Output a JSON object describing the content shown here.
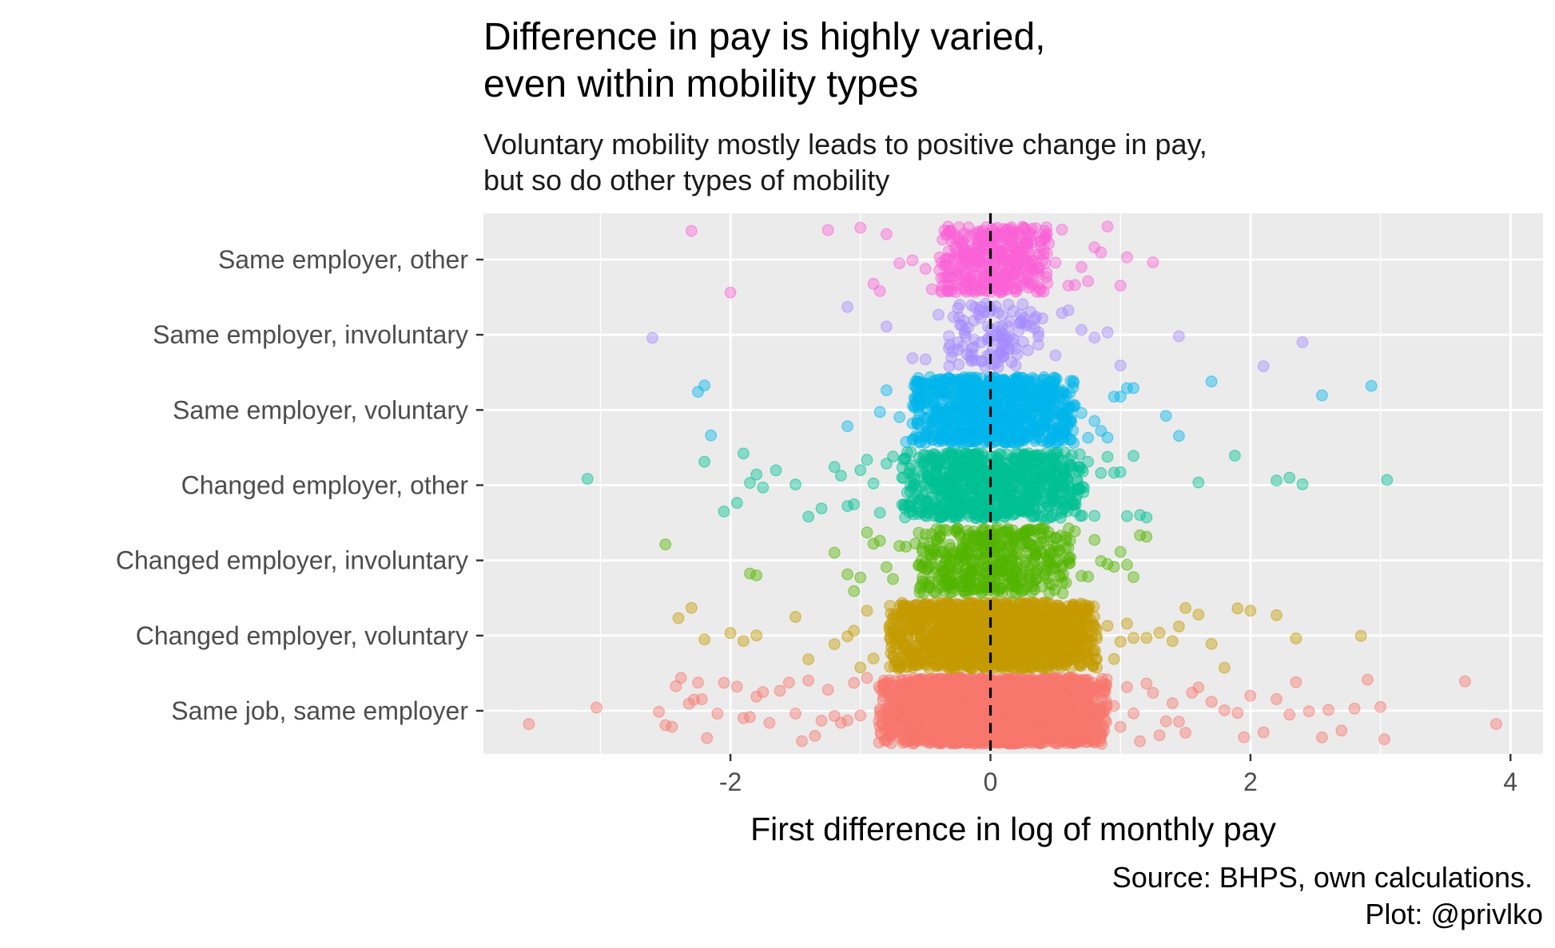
{
  "chart_data": {
    "type": "scatter",
    "title": [
      "Difference in pay is highly varied,",
      "even within mobility types"
    ],
    "subtitle": [
      "Voluntary mobility mostly leads to positive change in pay,",
      "but so do other types of mobility"
    ],
    "xlabel": "First difference in log of monthly pay",
    "ylabel": "",
    "xlim": [
      -3.9,
      4.25
    ],
    "x_ticks": [
      -2,
      0,
      2,
      4
    ],
    "x_tick_labels": [
      "-2",
      "0",
      "2",
      "4"
    ],
    "reference_line": {
      "x": 0,
      "style": "dashed",
      "color": "#000000"
    },
    "grid": true,
    "legend": "none",
    "caption": [
      "Source: BHPS, own calculations.",
      "Plot: @privlko"
    ],
    "categories": [
      "Same job, same employer",
      "Changed employer, voluntary",
      "Changed employer, involuntary",
      "Changed employer, other",
      "Same employer, voluntary",
      "Same employer, involuntary",
      "Same employer, other"
    ],
    "series": [
      {
        "name": "Same job, same employer",
        "color": "#F8766D",
        "n_core": 2600,
        "core_sd": 0.45,
        "core_clip": 0.88,
        "points": [
          -3.55,
          -3.03,
          -2.55,
          -2.5,
          -2.45,
          -2.42,
          -2.38,
          -2.32,
          -2.28,
          -2.25,
          -2.22,
          -2.18,
          -2.1,
          -2.05,
          -1.95,
          -1.9,
          -1.85,
          -1.8,
          -1.75,
          -1.7,
          -1.62,
          -1.55,
          -1.5,
          -1.45,
          -1.4,
          -1.35,
          -1.3,
          -1.25,
          -1.2,
          -1.15,
          -1.1,
          -1.05,
          -1.0,
          -0.95,
          0.95,
          1.0,
          1.05,
          1.1,
          1.15,
          1.2,
          1.25,
          1.3,
          1.35,
          1.4,
          1.45,
          1.5,
          1.55,
          1.6,
          1.7,
          1.8,
          1.9,
          1.95,
          2.0,
          2.1,
          2.2,
          2.3,
          2.35,
          2.45,
          2.55,
          2.6,
          2.7,
          2.8,
          2.9,
          3.0,
          3.03,
          3.65,
          3.89
        ]
      },
      {
        "name": "Changed employer, voluntary",
        "color": "#C49A00",
        "n_core": 1500,
        "core_sd": 0.45,
        "core_clip": 0.8,
        "points": [
          -2.4,
          -2.3,
          -2.2,
          -2.0,
          -1.9,
          -1.8,
          -1.5,
          -1.4,
          -1.2,
          -1.1,
          -1.05,
          -1.0,
          -0.95,
          -0.9,
          0.9,
          0.95,
          1.0,
          1.05,
          1.1,
          1.2,
          1.3,
          1.4,
          1.45,
          1.5,
          1.6,
          1.7,
          1.8,
          1.9,
          2.0,
          2.2,
          2.35,
          2.85
        ]
      },
      {
        "name": "Changed employer, involuntary",
        "color": "#53B400",
        "n_core": 450,
        "core_sd": 0.35,
        "core_clip": 0.6,
        "points": [
          -2.5,
          -1.85,
          -1.8,
          -1.2,
          -1.1,
          -1.05,
          -1.0,
          -0.95,
          -0.9,
          -0.85,
          -0.8,
          -0.75,
          -0.7,
          -0.65,
          0.65,
          0.7,
          0.75,
          0.8,
          0.85,
          0.9,
          0.95,
          1.0,
          1.05,
          1.1,
          1.15,
          1.2
        ]
      },
      {
        "name": "Changed employer, other",
        "color": "#00C094",
        "n_core": 800,
        "core_sd": 0.4,
        "core_clip": 0.7,
        "points": [
          -3.1,
          -2.2,
          -2.05,
          -1.95,
          -1.9,
          -1.85,
          -1.8,
          -1.75,
          -1.65,
          -1.5,
          -1.4,
          -1.3,
          -1.2,
          -1.15,
          -1.1,
          -1.05,
          -1.0,
          -0.95,
          -0.9,
          -0.85,
          -0.8,
          -0.75,
          0.75,
          0.8,
          0.85,
          0.9,
          0.95,
          1.0,
          1.05,
          1.1,
          1.15,
          1.2,
          1.6,
          1.88,
          2.2,
          2.3,
          2.4,
          3.05
        ]
      },
      {
        "name": "Same employer, voluntary",
        "color": "#00B6EB",
        "n_core": 900,
        "core_sd": 0.35,
        "core_clip": 0.62,
        "points": [
          -2.25,
          -2.2,
          -2.15,
          -1.1,
          -0.85,
          -0.8,
          -0.7,
          -0.65,
          0.65,
          0.7,
          0.75,
          0.8,
          0.85,
          0.9,
          0.95,
          1.0,
          1.05,
          1.1,
          1.35,
          1.45,
          1.7,
          2.55,
          2.93
        ]
      },
      {
        "name": "Same employer, involuntary",
        "color": "#A58AFF",
        "n_core": 110,
        "core_sd": 0.2,
        "core_clip": 0.35,
        "points": [
          -2.6,
          -1.1,
          -0.8,
          -0.6,
          -0.5,
          -0.4,
          -0.3,
          -0.25,
          -0.2,
          0.35,
          0.4,
          0.5,
          0.55,
          0.6,
          0.7,
          0.8,
          0.9,
          1.0,
          1.45,
          2.1,
          2.4
        ]
      },
      {
        "name": "Same employer, other",
        "color": "#FB61D7",
        "n_core": 380,
        "core_sd": 0.25,
        "core_clip": 0.42,
        "points": [
          -2.3,
          -2.0,
          -1.25,
          -1.0,
          -0.9,
          -0.85,
          -0.8,
          -0.7,
          -0.6,
          -0.5,
          -0.45,
          0.45,
          0.5,
          0.55,
          0.6,
          0.65,
          0.7,
          0.75,
          0.8,
          0.85,
          0.9,
          1.0,
          1.05,
          1.25
        ]
      }
    ]
  }
}
